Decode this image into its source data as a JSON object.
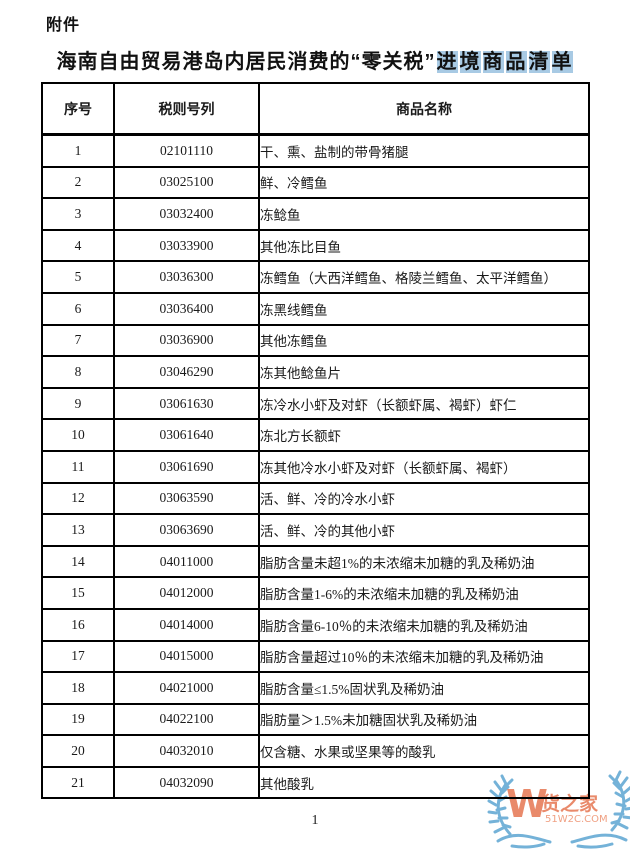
{
  "page": {
    "attachment_label": "附件",
    "title": "海南自由贸易港岛内居民消费的“零关税”",
    "title_highlighted": "进境商品清单",
    "page_number": "1"
  },
  "table": {
    "headers": [
      "序号",
      "税则号列",
      "商品名称"
    ],
    "rows": [
      {
        "no": "1",
        "code": "02101110",
        "name": "干、熏、盐制的带骨猪腿"
      },
      {
        "no": "2",
        "code": "03025100",
        "name": "鲜、冷鳕鱼"
      },
      {
        "no": "3",
        "code": "03032400",
        "name": "冻鲶鱼"
      },
      {
        "no": "4",
        "code": "03033900",
        "name": "其他冻比目鱼"
      },
      {
        "no": "5",
        "code": "03036300",
        "name": "冻鳕鱼（大西洋鳕鱼、格陵兰鳕鱼、太平洋鳕鱼）"
      },
      {
        "no": "6",
        "code": "03036400",
        "name": "冻黑线鳕鱼"
      },
      {
        "no": "7",
        "code": "03036900",
        "name": "其他冻鳕鱼"
      },
      {
        "no": "8",
        "code": "03046290",
        "name": "冻其他鲶鱼片"
      },
      {
        "no": "9",
        "code": "03061630",
        "name": "冻冷水小虾及对虾（长额虾属、褐虾）虾仁"
      },
      {
        "no": "10",
        "code": "03061640",
        "name": "冻北方长额虾"
      },
      {
        "no": "11",
        "code": "03061690",
        "name": "冻其他冷水小虾及对虾（长额虾属、褐虾）"
      },
      {
        "no": "12",
        "code": "03063590",
        "name": "活、鲜、冷的冷水小虾"
      },
      {
        "no": "13",
        "code": "03063690",
        "name": "活、鲜、冷的其他小虾"
      },
      {
        "no": "14",
        "code": "04011000",
        "name": "脂肪含量未超1%的未浓缩未加糖的乳及稀奶油"
      },
      {
        "no": "15",
        "code": "04012000",
        "name": "脂肪含量1-6%的未浓缩未加糖的乳及稀奶油"
      },
      {
        "no": "16",
        "code": "04014000",
        "name": "脂肪含量6-10％的未浓缩未加糖的乳及稀奶油"
      },
      {
        "no": "17",
        "code": "04015000",
        "name": "脂肪含量超过10％的未浓缩未加糖的乳及稀奶油"
      },
      {
        "no": "18",
        "code": "04021000",
        "name": "脂肪含量≤1.5%固状乳及稀奶油"
      },
      {
        "no": "19",
        "code": "04022100",
        "name": "脂肪量＞1.5%未加糖固状乳及稀奶油"
      },
      {
        "no": "20",
        "code": "04032010",
        "name": "仅含糖、水果或坚果等的酸乳"
      },
      {
        "no": "21",
        "code": "04032090",
        "name": "其他酸乳"
      }
    ]
  },
  "watermark": {
    "logo_letter": "W",
    "brand_name": "货之家",
    "website": "51W2C.COM"
  },
  "colors": {
    "highlight_blue": "#A8CAE4",
    "watermark_orange": "#E98A6B",
    "watermark_orange_light": "#F0A184",
    "watermark_blue": "#74B2D8",
    "table_border": "#000000"
  }
}
